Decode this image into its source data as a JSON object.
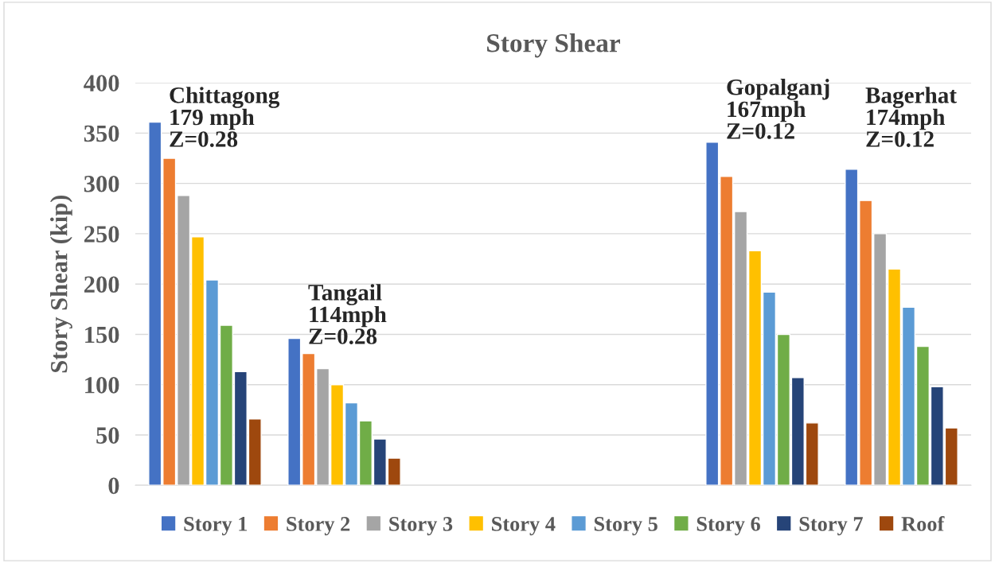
{
  "chart_data": {
    "type": "bar",
    "title": "Story Shear",
    "ylabel": "Story Shear (kip)",
    "categories": [
      null,
      null,
      null,
      null,
      null,
      null
    ],
    "series": [
      {
        "name": "Story 1",
        "color": "#4472c4",
        "values": [
          361,
          146,
          null,
          null,
          341,
          314
        ]
      },
      {
        "name": "Story 2",
        "color": "#ed7d31",
        "values": [
          325,
          131,
          null,
          null,
          307,
          283
        ]
      },
      {
        "name": "Story 3",
        "color": "#a5a5a5",
        "values": [
          288,
          116,
          null,
          null,
          272,
          250
        ]
      },
      {
        "name": "Story 4",
        "color": "#ffc000",
        "values": [
          247,
          100,
          null,
          null,
          233,
          215
        ]
      },
      {
        "name": "Story 5",
        "color": "#5b9bd5",
        "values": [
          204,
          82,
          null,
          null,
          192,
          177
        ]
      },
      {
        "name": "Story 6",
        "color": "#70ad47",
        "values": [
          159,
          64,
          null,
          null,
          150,
          138
        ]
      },
      {
        "name": "Story 7",
        "color": "#264478",
        "values": [
          113,
          46,
          null,
          null,
          107,
          98
        ]
      },
      {
        "name": "Roof",
        "color": "#9e480e",
        "values": [
          66,
          27,
          null,
          null,
          62,
          57
        ]
      }
    ],
    "annotations": [
      "Chittagong\n179 mph\nZ=0.28",
      "Tangail\n114mph\nZ=0.28",
      "Gopalganj\n167mph\nZ=0.12",
      "Bagerhat\n174mph\nZ=0.12"
    ],
    "ylim": [
      0,
      400
    ],
    "yticks": [
      0,
      50,
      100,
      150,
      200,
      250,
      300,
      350,
      400
    ],
    "grid": "y",
    "legend": "bottom"
  }
}
